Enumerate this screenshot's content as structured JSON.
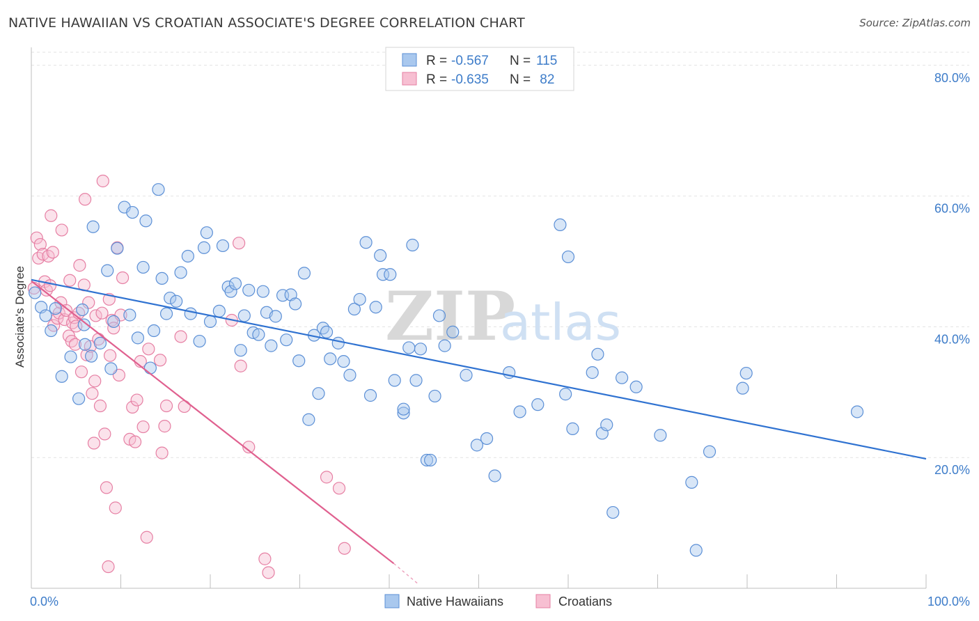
{
  "title": "NATIVE HAWAIIAN VS CROATIAN ASSOCIATE'S DEGREE CORRELATION CHART",
  "source": "Source: ZipAtlas.com",
  "watermark": {
    "zip": "ZIP",
    "atlas": "atlas"
  },
  "colors": {
    "blue_fill": "#a9c8ee",
    "blue_stroke": "#5b8fd6",
    "blue_line": "#2f72d1",
    "pink_fill": "#f7bfd2",
    "pink_stroke": "#e67fa3",
    "pink_line": "#e0608f",
    "grid": "#e2e2e2",
    "axis_text": "#3d7cc9"
  },
  "legend": {
    "rows": [
      {
        "r_label": "R = ",
        "r_value": "-0.567",
        "n_label": "N = ",
        "n_value": "115",
        "color": "blue"
      },
      {
        "r_label": "R = ",
        "r_value": "-0.635",
        "n_label": "N = ",
        "n_value": " 82",
        "color": "pink"
      }
    ]
  },
  "chart_data": {
    "type": "scatter",
    "title": "NATIVE HAWAIIAN VS CROATIAN ASSOCIATE'S DEGREE CORRELATION CHART",
    "xlabel": "",
    "ylabel": "Associate's Degree",
    "xlim": [
      0,
      100
    ],
    "ylim": [
      0,
      82
    ],
    "x_ticks": [
      "0.0%",
      "100.0%"
    ],
    "y_ticks": [
      {
        "value": 20,
        "label": "20.0%"
      },
      {
        "value": 40,
        "label": "40.0%"
      },
      {
        "value": 60,
        "label": "60.0%"
      },
      {
        "value": 80,
        "label": "80.0%"
      }
    ],
    "grid": true,
    "legend_position": "bottom",
    "series": [
      {
        "name": "Native Hawaiians",
        "color": "blue",
        "trend": {
          "x": [
            0,
            100
          ],
          "y": [
            47.2,
            19.8
          ],
          "dashed_from": null
        },
        "points": [
          [
            0.4,
            45.2
          ],
          [
            1.1,
            43.0
          ],
          [
            1.6,
            41.7
          ],
          [
            2.2,
            39.4
          ],
          [
            2.7,
            42.8
          ],
          [
            3.4,
            32.4
          ],
          [
            4.4,
            35.4
          ],
          [
            5.3,
            29.0
          ],
          [
            5.7,
            42.6
          ],
          [
            5.9,
            40.3
          ],
          [
            6.0,
            37.3
          ],
          [
            6.7,
            35.5
          ],
          [
            6.9,
            55.3
          ],
          [
            7.7,
            37.5
          ],
          [
            8.5,
            48.6
          ],
          [
            8.9,
            33.6
          ],
          [
            9.2,
            40.8
          ],
          [
            9.6,
            52.0
          ],
          [
            10.4,
            58.3
          ],
          [
            11.0,
            41.8
          ],
          [
            11.3,
            57.5
          ],
          [
            11.9,
            38.3
          ],
          [
            12.5,
            49.1
          ],
          [
            12.8,
            56.2
          ],
          [
            13.3,
            33.7
          ],
          [
            13.7,
            39.4
          ],
          [
            14.2,
            61.0
          ],
          [
            14.6,
            47.4
          ],
          [
            15.1,
            42.0
          ],
          [
            15.5,
            44.4
          ],
          [
            16.2,
            43.9
          ],
          [
            16.7,
            48.3
          ],
          [
            17.5,
            50.8
          ],
          [
            17.8,
            42.0
          ],
          [
            18.8,
            37.8
          ],
          [
            19.3,
            52.1
          ],
          [
            19.6,
            54.4
          ],
          [
            20.0,
            40.8
          ],
          [
            21.0,
            42.4
          ],
          [
            21.4,
            52.4
          ],
          [
            22.0,
            46.1
          ],
          [
            22.3,
            45.4
          ],
          [
            22.8,
            46.6
          ],
          [
            23.4,
            36.4
          ],
          [
            23.8,
            41.7
          ],
          [
            24.3,
            45.6
          ],
          [
            24.8,
            39.1
          ],
          [
            25.4,
            38.8
          ],
          [
            25.9,
            45.4
          ],
          [
            26.3,
            42.2
          ],
          [
            26.8,
            37.1
          ],
          [
            27.3,
            41.6
          ],
          [
            28.1,
            44.8
          ],
          [
            28.5,
            38.0
          ],
          [
            29.0,
            44.9
          ],
          [
            29.5,
            43.5
          ],
          [
            29.9,
            34.8
          ],
          [
            30.5,
            48.2
          ],
          [
            31.0,
            25.8
          ],
          [
            31.6,
            38.7
          ],
          [
            32.1,
            29.8
          ],
          [
            32.6,
            39.8
          ],
          [
            33.0,
            39.2
          ],
          [
            33.4,
            35.1
          ],
          [
            34.3,
            37.5
          ],
          [
            34.9,
            34.7
          ],
          [
            35.6,
            32.6
          ],
          [
            36.1,
            42.7
          ],
          [
            36.7,
            44.2
          ],
          [
            37.4,
            52.9
          ],
          [
            37.9,
            29.5
          ],
          [
            38.5,
            43.0
          ],
          [
            39.0,
            50.9
          ],
          [
            39.3,
            48.0
          ],
          [
            40.1,
            48.0
          ],
          [
            40.6,
            31.8
          ],
          [
            41.6,
            26.8
          ],
          [
            41.6,
            27.4
          ],
          [
            42.2,
            36.8
          ],
          [
            42.6,
            52.5
          ],
          [
            43.0,
            31.8
          ],
          [
            43.5,
            36.6
          ],
          [
            44.2,
            19.6
          ],
          [
            44.6,
            19.6
          ],
          [
            45.1,
            29.4
          ],
          [
            45.6,
            41.7
          ],
          [
            46.2,
            37.1
          ],
          [
            47.1,
            39.2
          ],
          [
            48.6,
            32.6
          ],
          [
            49.8,
            21.9
          ],
          [
            50.9,
            22.9
          ],
          [
            51.8,
            17.2
          ],
          [
            53.4,
            33.0
          ],
          [
            54.6,
            27.0
          ],
          [
            56.6,
            28.1
          ],
          [
            59.1,
            55.6
          ],
          [
            59.7,
            29.7
          ],
          [
            60.0,
            50.7
          ],
          [
            60.5,
            24.4
          ],
          [
            62.7,
            33.0
          ],
          [
            63.3,
            35.8
          ],
          [
            63.8,
            23.7
          ],
          [
            64.3,
            25.0
          ],
          [
            65.0,
            11.6
          ],
          [
            66.0,
            32.2
          ],
          [
            67.6,
            30.8
          ],
          [
            70.3,
            23.4
          ],
          [
            73.8,
            16.2
          ],
          [
            75.8,
            20.9
          ],
          [
            74.3,
            5.8
          ],
          [
            79.5,
            30.6
          ],
          [
            79.9,
            32.9
          ],
          [
            92.3,
            27.0
          ]
        ]
      },
      {
        "name": "Croatians",
        "color": "pink",
        "trend": {
          "x": [
            0,
            40.5
          ],
          "y": [
            47.0,
            3.8
          ],
          "dashed_to": [
            43.2,
            0.7
          ]
        },
        "points": [
          [
            0.3,
            45.9
          ],
          [
            0.6,
            53.6
          ],
          [
            0.8,
            50.5
          ],
          [
            1.0,
            52.6
          ],
          [
            1.3,
            51.1
          ],
          [
            1.5,
            46.9
          ],
          [
            1.7,
            45.6
          ],
          [
            1.9,
            50.8
          ],
          [
            2.1,
            46.3
          ],
          [
            2.2,
            57.0
          ],
          [
            2.4,
            51.4
          ],
          [
            2.5,
            40.2
          ],
          [
            2.9,
            41.3
          ],
          [
            3.1,
            42.1
          ],
          [
            3.3,
            43.7
          ],
          [
            3.4,
            54.8
          ],
          [
            3.7,
            41.1
          ],
          [
            3.9,
            42.5
          ],
          [
            4.2,
            38.6
          ],
          [
            4.3,
            47.1
          ],
          [
            4.5,
            37.8
          ],
          [
            4.6,
            40.6
          ],
          [
            4.8,
            41.4
          ],
          [
            4.9,
            37.3
          ],
          [
            5.0,
            40.1
          ],
          [
            5.3,
            42.1
          ],
          [
            5.4,
            49.4
          ],
          [
            5.6,
            33.1
          ],
          [
            5.9,
            46.4
          ],
          [
            6.0,
            59.5
          ],
          [
            6.2,
            35.7
          ],
          [
            6.4,
            43.7
          ],
          [
            6.6,
            37.0
          ],
          [
            6.8,
            29.8
          ],
          [
            7.0,
            22.2
          ],
          [
            7.1,
            31.7
          ],
          [
            7.2,
            41.7
          ],
          [
            7.5,
            38.1
          ],
          [
            7.7,
            27.9
          ],
          [
            7.9,
            42.1
          ],
          [
            8.0,
            62.3
          ],
          [
            8.2,
            23.6
          ],
          [
            8.4,
            15.4
          ],
          [
            8.6,
            3.3
          ],
          [
            8.7,
            44.2
          ],
          [
            8.8,
            35.6
          ],
          [
            9.0,
            41.0
          ],
          [
            9.2,
            39.8
          ],
          [
            9.4,
            12.3
          ],
          [
            9.6,
            52.1
          ],
          [
            9.8,
            32.6
          ],
          [
            10.0,
            41.8
          ],
          [
            10.2,
            47.5
          ],
          [
            11.0,
            22.8
          ],
          [
            11.3,
            27.7
          ],
          [
            11.6,
            22.4
          ],
          [
            11.8,
            28.8
          ],
          [
            12.2,
            34.7
          ],
          [
            12.5,
            24.7
          ],
          [
            12.9,
            7.8
          ],
          [
            13.1,
            36.6
          ],
          [
            14.4,
            34.9
          ],
          [
            14.6,
            20.7
          ],
          [
            14.9,
            24.8
          ],
          [
            15.1,
            27.9
          ],
          [
            16.7,
            38.5
          ],
          [
            17.1,
            27.8
          ],
          [
            22.4,
            41.0
          ],
          [
            23.2,
            52.8
          ],
          [
            23.4,
            34.0
          ],
          [
            24.3,
            21.6
          ],
          [
            26.1,
            4.5
          ],
          [
            26.5,
            2.4
          ],
          [
            33.0,
            17.0
          ],
          [
            34.4,
            15.3
          ],
          [
            35.0,
            6.1
          ]
        ]
      }
    ]
  },
  "bottom_legend": [
    {
      "label": "Native Hawaiians",
      "color": "blue"
    },
    {
      "label": "Croatians",
      "color": "pink"
    }
  ]
}
